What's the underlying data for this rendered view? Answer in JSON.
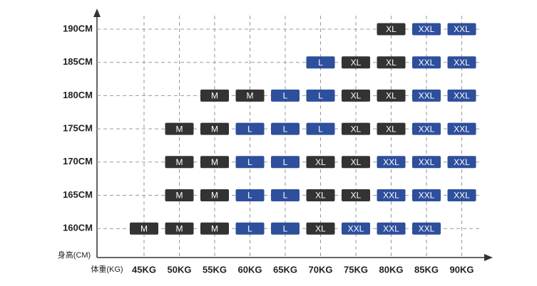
{
  "chart_data": {
    "type": "size-grid",
    "y_label": "身高(CM)",
    "x_label": "体重(KG)",
    "x_categories": [
      "45KG",
      "50KG",
      "55KG",
      "60KG",
      "65KG",
      "70KG",
      "75KG",
      "80KG",
      "85KG",
      "90KG"
    ],
    "y_categories": [
      "190CM",
      "185CM",
      "180CM",
      "175CM",
      "170CM",
      "165CM",
      "160CM"
    ],
    "cells": [
      [
        null,
        null,
        null,
        null,
        null,
        null,
        null,
        "XL",
        "XXL",
        "XXL"
      ],
      [
        null,
        null,
        null,
        null,
        null,
        "L",
        "XL",
        "XL",
        "XXL",
        "XXL"
      ],
      [
        null,
        null,
        "M",
        "M",
        "L",
        "L",
        "XL",
        "XL",
        "XXL",
        "XXL"
      ],
      [
        null,
        "M",
        "M",
        "L",
        "L",
        "L",
        "XL",
        "XL",
        "XXL",
        "XXL"
      ],
      [
        null,
        "M",
        "M",
        "L",
        "L",
        "XL",
        "XL",
        "XXL",
        "XXL",
        "XXL"
      ],
      [
        null,
        "M",
        "M",
        "L",
        "L",
        "XL",
        "XL",
        "XXL",
        "XXL",
        "XXL"
      ],
      [
        "M",
        "M",
        "M",
        "L",
        "L",
        "XL",
        "XXL",
        "XXL",
        "XXL",
        null
      ]
    ],
    "colors": {
      "M": "#333333",
      "L": "#2e4f9c",
      "XL": "#333333",
      "XXL": "#2e4f9c"
    },
    "grid": true
  }
}
